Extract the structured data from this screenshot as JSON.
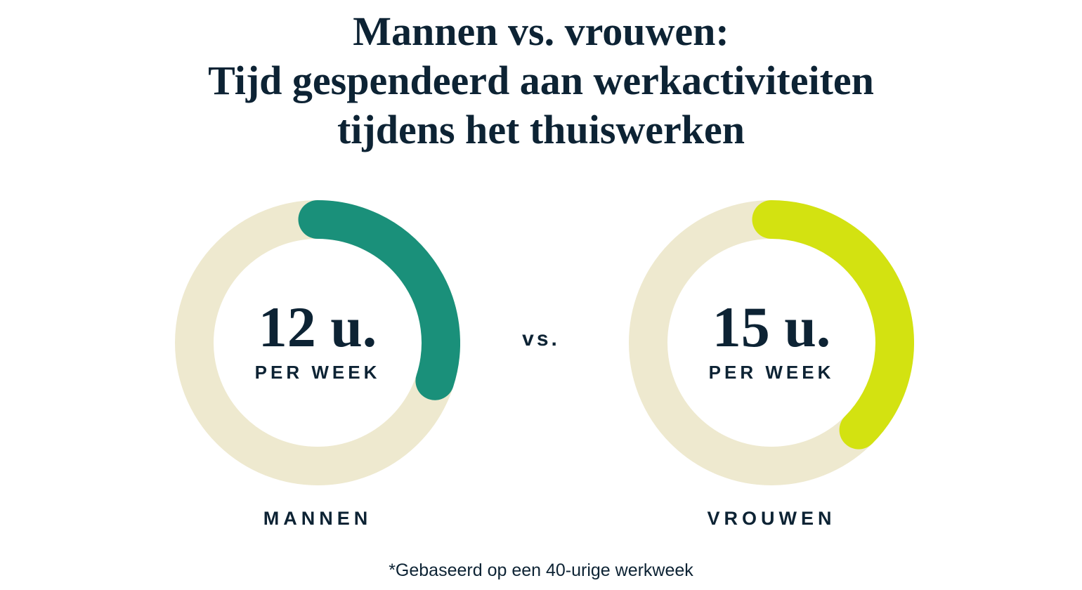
{
  "colors": {
    "background": "#ffffff",
    "navy": "#0d2334",
    "track_cream": "#eee9cf",
    "teal": "#1a907a",
    "lime": "#d3e211"
  },
  "header": {
    "line1": "Mannen vs. vrouwen:",
    "line2": "Tijd gespendeerd aan werkactiviteiten",
    "line3": "tijdens het thuiswerken"
  },
  "comparison": {
    "vs_label": "vs.",
    "total_hours_per_week": 40,
    "items": [
      {
        "id": "mannen",
        "value_label": "12 u.",
        "unit_label": "PER WEEK",
        "group_label": "MANNEN",
        "hours": 12,
        "arc_color": "#1a907a"
      },
      {
        "id": "vrouwen",
        "value_label": "15 u.",
        "unit_label": "PER WEEK",
        "group_label": "VROUWEN",
        "hours": 15,
        "arc_color": "#d3e211"
      }
    ]
  },
  "footnote": "*Gebaseerd op een 40-urige werkweek",
  "chart_data": {
    "type": "pie",
    "variant": "donut-progress-pair",
    "title": "Mannen vs. vrouwen: Tijd gespendeerd aan werkactiviteiten tijdens het thuiswerken",
    "unit": "uren per week",
    "denominator_hours": 40,
    "series": [
      {
        "name": "Mannen",
        "value": 12,
        "fraction": 0.3,
        "center_label": "12 u.",
        "center_sublabel": "PER WEEK",
        "color": "#1a907a"
      },
      {
        "name": "Vrouwen",
        "value": 15,
        "fraction": 0.375,
        "center_label": "15 u.",
        "center_sublabel": "PER WEEK",
        "color": "#d3e211"
      }
    ],
    "track_color": "#eee9cf",
    "arc_start": "top",
    "arc_direction": "clockwise",
    "legend_position": "below-each-donut",
    "footnote": "*Gebaseerd op een 40-urige werkweek"
  }
}
